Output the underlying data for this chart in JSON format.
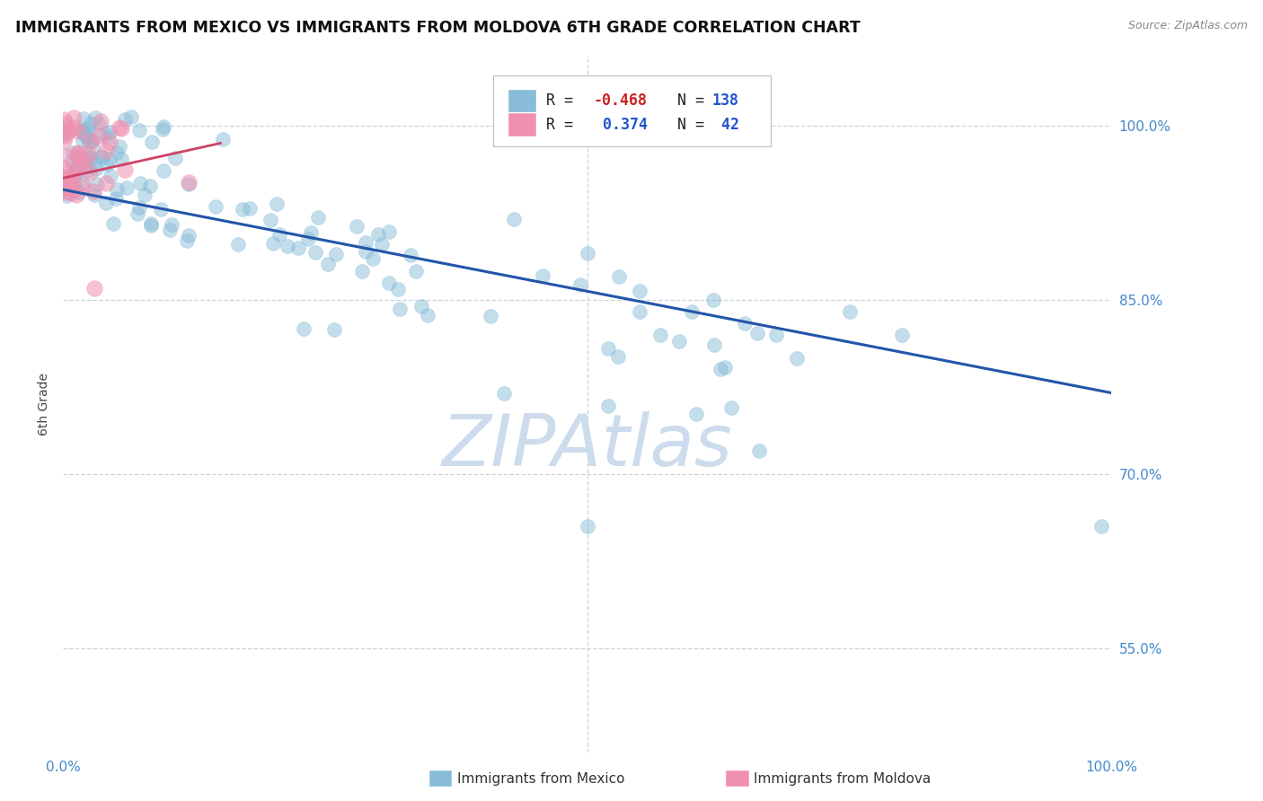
{
  "title": "IMMIGRANTS FROM MEXICO VS IMMIGRANTS FROM MOLDOVA 6TH GRADE CORRELATION CHART",
  "source": "Source: ZipAtlas.com",
  "ylabel": "6th Grade",
  "x_tick_labels": [
    "0.0%",
    "100.0%"
  ],
  "y_tick_labels": [
    "55.0%",
    "70.0%",
    "85.0%",
    "100.0%"
  ],
  "y_tick_values": [
    0.55,
    0.7,
    0.85,
    1.0
  ],
  "x_lim": [
    0.0,
    1.0
  ],
  "y_lim": [
    0.46,
    1.06
  ],
  "watermark": "ZIPAtlas",
  "watermark_color": "#ccdcec",
  "blue_line_x": [
    0.0,
    1.0
  ],
  "blue_line_y": [
    0.945,
    0.77
  ],
  "pink_line_x": [
    0.0,
    0.15
  ],
  "pink_line_y": [
    0.955,
    0.985
  ],
  "background_color": "#ffffff",
  "scatter_blue_color": "#88bcd8",
  "scatter_pink_color": "#f090b0",
  "grid_color": "#c8d4dc",
  "title_color": "#111111",
  "source_color": "#888888",
  "tick_color": "#4488cc",
  "line_blue_color": "#2255aa",
  "line_pink_color": "#cc4466",
  "legend_box_color": "#dddddd",
  "legend_text_blue_r": "-0.468",
  "legend_text_blue_n": "138",
  "legend_text_pink_r": "0.374",
  "legend_text_pink_n": "42"
}
